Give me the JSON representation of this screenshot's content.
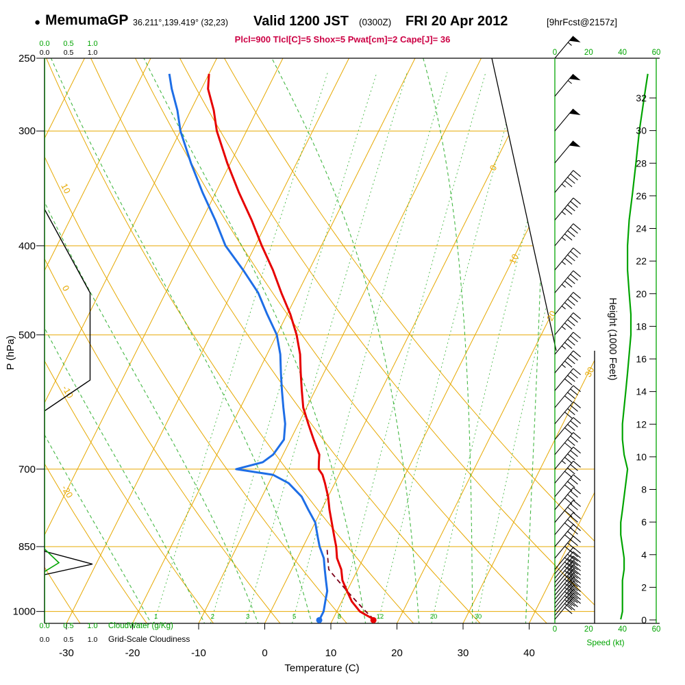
{
  "header": {
    "bullet": "●",
    "station": "MemumaGP",
    "coords": "36.211°,139.419° (32,23)",
    "valid_main": "Valid 1200 JST",
    "valid_z": "(0300Z)",
    "valid_date": "FRI 20 Apr 2012",
    "forecast_tag": "[9hrFcst@2157z]",
    "params": "Plcl=900 Tlcl[C]=5 Shox=5 Pwat[cm]=2 Cape[J]= 36"
  },
  "colors": {
    "grid_orange": "#e6a800",
    "grid_green": "#22aa22",
    "axis_green": "#00a400",
    "temp_red": "#e60000",
    "dew_blue": "#1e6ee6",
    "parcel_maroon": "#7a0018",
    "param_text": "#cc0044",
    "black": "#000000"
  },
  "axes": {
    "pressure": {
      "label": "P (hPa)",
      "ticks": [
        250,
        300,
        400,
        500,
        700,
        850,
        1000
      ]
    },
    "temperature": {
      "label": "Temperature (C)",
      "ticks": [
        -30,
        -20,
        -10,
        0,
        10,
        20,
        30,
        40
      ]
    },
    "height": {
      "label": "Height (1000 Feet)",
      "ticks": [
        0,
        2,
        4,
        6,
        8,
        10,
        12,
        14,
        16,
        18,
        20,
        22,
        24,
        26,
        28,
        30,
        32
      ]
    },
    "speed": {
      "label": "Speed (kt)",
      "ticks": [
        0,
        20,
        40,
        60
      ]
    },
    "cloud": {
      "scale": [
        "0.0",
        "0.5",
        "1.0"
      ],
      "cloudwater_label": "CloudWater (g/Kg)",
      "cloudiness_label": "Grid-Scale Cloudiness"
    }
  },
  "chart_data": {
    "type": "skewt-log-p",
    "pressure_range": [
      250,
      1050
    ],
    "pressure_gridlines": [
      300,
      400,
      500,
      700,
      850,
      1000
    ],
    "isotherm_step": 10,
    "isotherm_labels": [
      0,
      10,
      20,
      30
    ],
    "dry_adiabat_labels": [
      10,
      0,
      -10,
      -20
    ],
    "mixing_ratio_lines": [
      1,
      2,
      3,
      5,
      8,
      12,
      20,
      30
    ],
    "moist_adiabat_surface_temps": [
      -16,
      -8,
      0,
      8,
      16,
      24,
      32,
      40
    ],
    "sounding": {
      "pressure": [
        1020,
        1000,
        975,
        950,
        925,
        900,
        875,
        850,
        830,
        800,
        775,
        750,
        725,
        710,
        700,
        688,
        675,
        650,
        625,
        600,
        575,
        550,
        525,
        500,
        475,
        450,
        425,
        400,
        375,
        350,
        325,
        300,
        285,
        270,
        260
      ],
      "temperature": [
        16.2,
        13.5,
        11.5,
        10,
        8.5,
        7.5,
        6,
        5,
        4,
        2.5,
        1.2,
        0,
        -1.5,
        -2.5,
        -3.5,
        -4,
        -4.5,
        -6.5,
        -8.5,
        -10.5,
        -12,
        -13.5,
        -15,
        -17,
        -19.5,
        -22.5,
        -25.5,
        -29,
        -32.5,
        -36.5,
        -40.5,
        -44.5,
        -46.5,
        -49,
        -50
      ],
      "dewpoint": [
        8,
        8,
        7.5,
        7,
        6,
        5,
        4,
        2.5,
        1.5,
        0,
        -2,
        -4,
        -7,
        -10,
        -16,
        -12.5,
        -11.5,
        -11,
        -12,
        -13.5,
        -15,
        -16.5,
        -18,
        -20,
        -23,
        -26,
        -30,
        -34.5,
        -38,
        -42,
        -46,
        -50,
        -52,
        -54.5,
        -56
      ]
    },
    "surface_points": {
      "temperature": {
        "p": 1022,
        "t": 16.2
      },
      "dewpoint": {
        "p": 1022,
        "t": 8
      }
    },
    "parcel_path": [
      [
        1020,
        16.2
      ],
      [
        1000,
        14.4
      ],
      [
        975,
        12.2
      ],
      [
        950,
        10
      ],
      [
        925,
        7.8
      ],
      [
        900,
        5.6
      ],
      [
        875,
        4.6
      ],
      [
        855,
        3.8
      ]
    ],
    "wind_barbs": [
      [
        250,
        55
      ],
      [
        275,
        53
      ],
      [
        300,
        50
      ],
      [
        325,
        48
      ],
      [
        350,
        46
      ],
      [
        375,
        44
      ],
      [
        400,
        43
      ],
      [
        425,
        43
      ],
      [
        450,
        44
      ],
      [
        475,
        45
      ],
      [
        500,
        45
      ],
      [
        525,
        44
      ],
      [
        550,
        43
      ],
      [
        575,
        42
      ],
      [
        600,
        41
      ],
      [
        625,
        40
      ],
      [
        650,
        40
      ],
      [
        675,
        41
      ],
      [
        700,
        43
      ],
      [
        725,
        42
      ],
      [
        750,
        41
      ],
      [
        775,
        40
      ],
      [
        800,
        39
      ],
      [
        825,
        39
      ],
      [
        850,
        40
      ],
      [
        875,
        41
      ],
      [
        900,
        41
      ],
      [
        910,
        40
      ],
      [
        920,
        40
      ],
      [
        930,
        41
      ],
      [
        940,
        41
      ],
      [
        950,
        40
      ],
      [
        960,
        40
      ],
      [
        970,
        40
      ],
      [
        980,
        40
      ],
      [
        990,
        40
      ],
      [
        1000,
        40
      ],
      [
        1010,
        39
      ],
      [
        1020,
        39
      ]
    ],
    "speed_profile": [
      [
        260,
        55
      ],
      [
        275,
        53
      ],
      [
        300,
        50
      ],
      [
        325,
        48
      ],
      [
        350,
        46
      ],
      [
        375,
        44
      ],
      [
        400,
        43
      ],
      [
        425,
        43
      ],
      [
        450,
        44
      ],
      [
        475,
        45
      ],
      [
        500,
        45
      ],
      [
        525,
        44
      ],
      [
        550,
        43
      ],
      [
        575,
        42
      ],
      [
        600,
        41
      ],
      [
        625,
        40
      ],
      [
        650,
        40
      ],
      [
        675,
        41
      ],
      [
        700,
        43
      ],
      [
        725,
        42
      ],
      [
        750,
        41
      ],
      [
        775,
        40
      ],
      [
        800,
        39
      ],
      [
        825,
        39
      ],
      [
        850,
        40
      ],
      [
        875,
        41
      ],
      [
        900,
        41
      ],
      [
        925,
        40
      ],
      [
        950,
        40
      ],
      [
        975,
        40
      ],
      [
        1000,
        40
      ],
      [
        1020,
        39
      ]
    ],
    "cloudiness_profile": [
      [
        250,
        0
      ],
      [
        365,
        0
      ],
      [
        450,
        0.95
      ],
      [
        560,
        0.95
      ],
      [
        605,
        0
      ],
      [
        860,
        0
      ],
      [
        888,
        1.0
      ],
      [
        912,
        0
      ],
      [
        1050,
        0
      ]
    ],
    "cloudwater_profile": [
      [
        250,
        0
      ],
      [
        855,
        0
      ],
      [
        885,
        0.3
      ],
      [
        905,
        0
      ],
      [
        1050,
        0
      ]
    ]
  }
}
